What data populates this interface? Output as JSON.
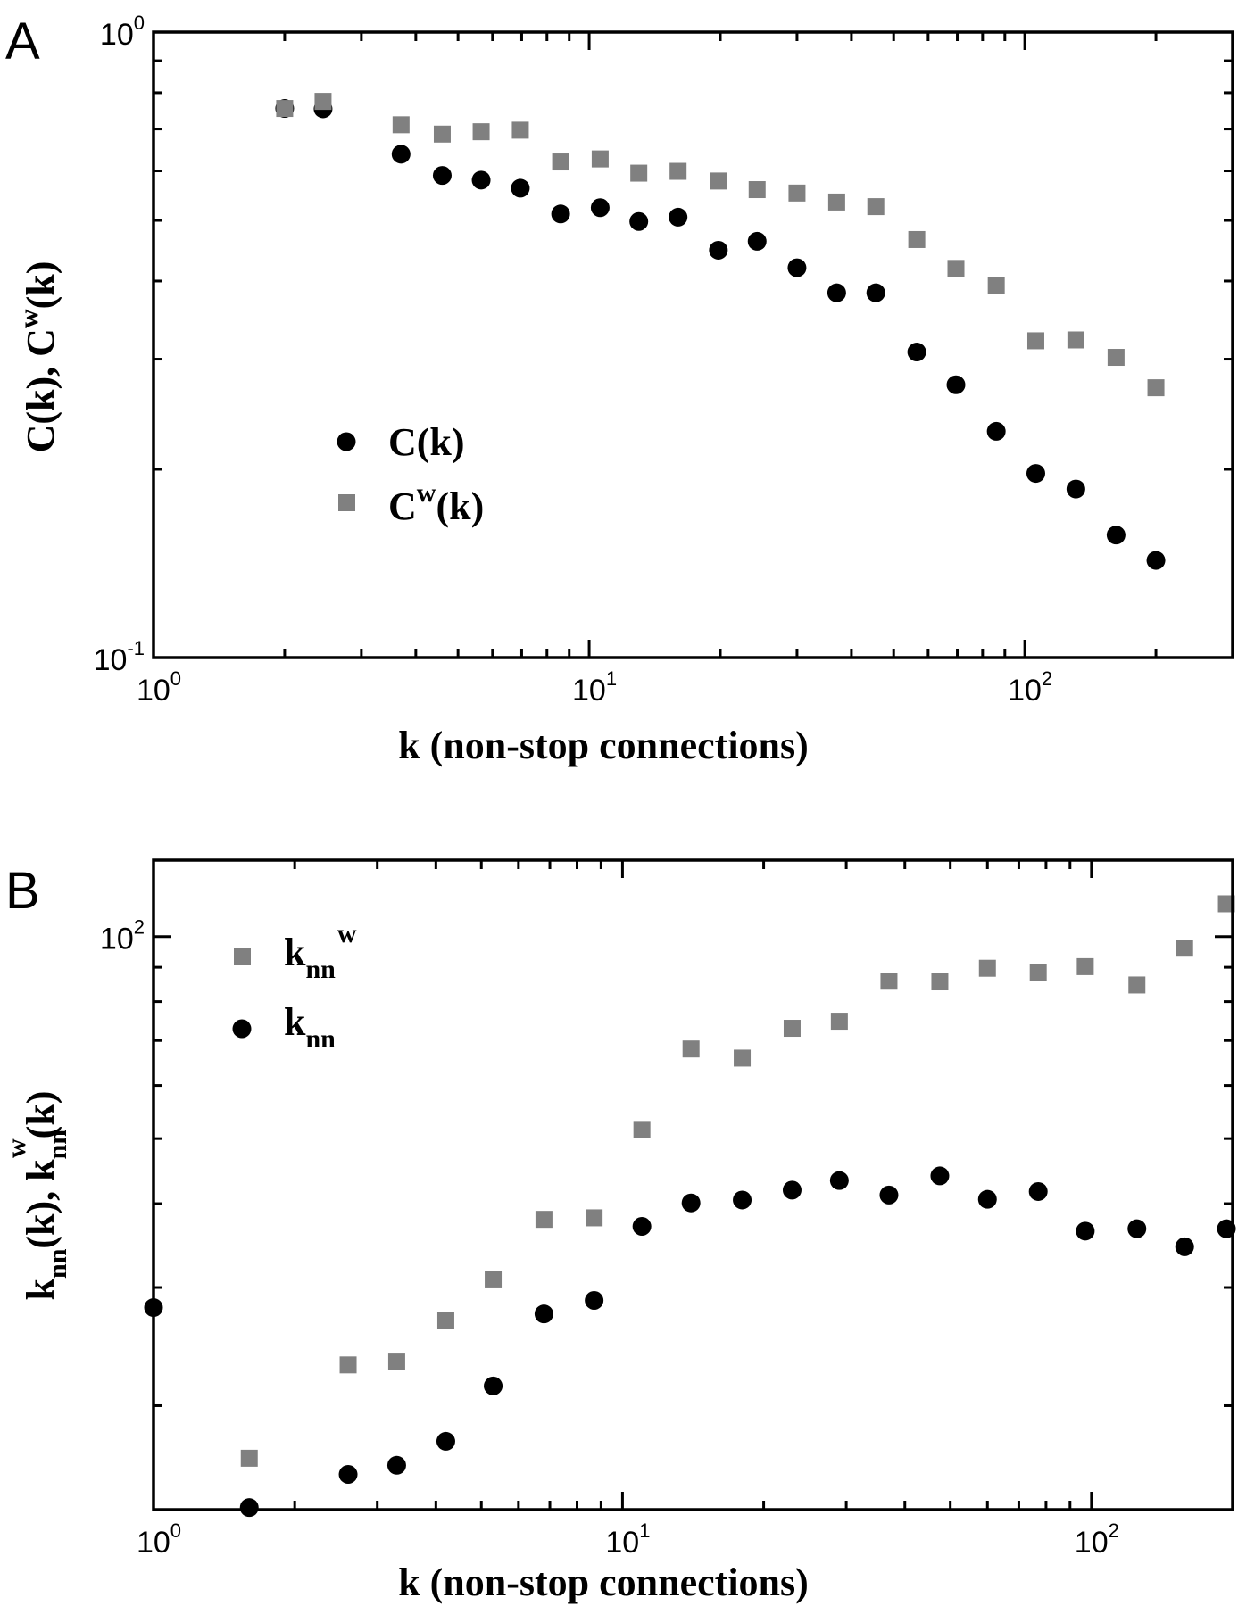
{
  "colors": {
    "circle": "#000000",
    "square": "#808080",
    "axes": "#000000"
  },
  "chart_data": [
    {
      "panel": "A",
      "type": "scatter",
      "xscale": "log",
      "yscale": "log",
      "xlim": [
        1,
        300
      ],
      "ylim": [
        0.1,
        1
      ],
      "x_ticks": [
        {
          "base": "10",
          "exp": "0",
          "value": 1
        },
        {
          "base": "10",
          "exp": "1",
          "value": 10
        },
        {
          "base": "10",
          "exp": "2",
          "value": 100
        }
      ],
      "y_ticks": [
        {
          "base": "10",
          "exp": "0",
          "value": 1
        },
        {
          "base": "10",
          "exp": "-1",
          "value": 0.1
        }
      ],
      "xlabel": "k  (non-stop connections)",
      "ylabel": {
        "p1": "C(k), C",
        "sup": "w",
        "p2": "(k)"
      },
      "legend_position": "lower-left",
      "series": [
        {
          "key": "C",
          "marker": "circle",
          "legend": {
            "main": "C(k)",
            "sup": ""
          },
          "x": [
            2.0,
            2.45,
            3.7,
            4.6,
            5.65,
            6.95,
            8.6,
            10.6,
            13.0,
            16.0,
            19.8,
            24.3,
            30.0,
            37.0,
            45.5,
            56.5,
            69.5,
            86.0,
            106,
            131,
            162,
            200
          ],
          "y": [
            0.755,
            0.754,
            0.638,
            0.59,
            0.58,
            0.563,
            0.512,
            0.524,
            0.498,
            0.506,
            0.448,
            0.463,
            0.42,
            0.383,
            0.383,
            0.308,
            0.273,
            0.23,
            0.197,
            0.186,
            0.157,
            0.143
          ]
        },
        {
          "key": "Cw",
          "marker": "square",
          "legend": {
            "main": "C",
            "sup": "w",
            "rest": "(k)"
          },
          "x": [
            2.0,
            2.45,
            3.7,
            4.6,
            5.65,
            6.95,
            8.6,
            10.6,
            13.0,
            16.0,
            19.8,
            24.3,
            30.0,
            37.0,
            45.5,
            56.5,
            69.5,
            86.0,
            106,
            131,
            162,
            200
          ],
          "y": [
            0.755,
            0.775,
            0.711,
            0.687,
            0.693,
            0.697,
            0.62,
            0.627,
            0.595,
            0.599,
            0.578,
            0.56,
            0.553,
            0.535,
            0.526,
            0.466,
            0.419,
            0.393,
            0.321,
            0.322,
            0.302,
            0.27
          ]
        }
      ]
    },
    {
      "panel": "B",
      "type": "scatter",
      "xscale": "log",
      "yscale": "log",
      "xlim": [
        1,
        200
      ],
      "ylim": [
        14.0,
        130
      ],
      "x_ticks": [
        {
          "base": "10",
          "exp": "0",
          "value": 1
        },
        {
          "base": "10",
          "exp": "1",
          "value": 10
        },
        {
          "base": "10",
          "exp": "2",
          "value": 100
        }
      ],
      "y_ticks": [
        {
          "base": "10",
          "exp": "2",
          "value": 100
        }
      ],
      "xlabel": "k  (non-stop connections)",
      "ylabel": {
        "p1": "k",
        "sub1": "nn",
        "p2": "(k), k",
        "sub2": "nn",
        "sup2": "w",
        "p3": "(k)"
      },
      "legend_position": "upper-left",
      "series": [
        {
          "key": "knnw",
          "marker": "square",
          "legend": {
            "main": "k",
            "sub": "nn",
            "sup": "w"
          },
          "x": [
            1.6,
            2.6,
            3.3,
            4.2,
            5.3,
            6.8,
            8.7,
            11.0,
            14.0,
            18.0,
            23.0,
            29.0,
            37.0,
            47.5,
            60.0,
            77.0,
            97.0,
            125,
            158,
            194
          ],
          "y": [
            16.7,
            23.0,
            23.3,
            26.8,
            30.8,
            37.9,
            38.1,
            51.6,
            68.0,
            65.9,
            73.0,
            74.8,
            85.8,
            85.6,
            89.7,
            88.5,
            90.2,
            84.7,
            96.1,
            111.9
          ]
        },
        {
          "key": "knn",
          "marker": "circle",
          "legend": {
            "main": "k",
            "sub": "nn",
            "sup": ""
          },
          "x": [
            1.0,
            1.6,
            2.6,
            3.3,
            4.2,
            5.3,
            6.8,
            8.7,
            11.0,
            14.0,
            18.0,
            23.0,
            29.0,
            37.0,
            47.5,
            60.0,
            77.0,
            97.0,
            125,
            158,
            194
          ],
          "y": [
            28.0,
            14.1,
            15.8,
            16.3,
            17.7,
            21.4,
            27.4,
            28.7,
            37.0,
            40.1,
            40.5,
            41.9,
            43.3,
            41.2,
            44.0,
            40.6,
            41.7,
            36.4,
            36.7,
            34.5,
            36.7
          ]
        }
      ]
    }
  ],
  "panels": {
    "A": {
      "letter": "A"
    },
    "B": {
      "letter": "B"
    }
  }
}
